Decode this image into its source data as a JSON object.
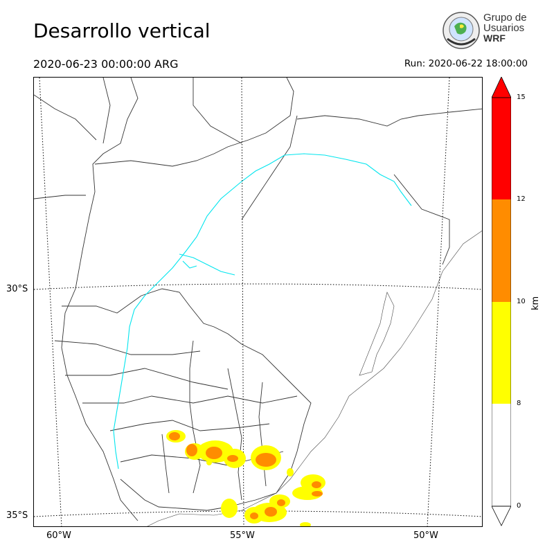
{
  "header": {
    "title": "Desarrollo vertical",
    "valid_time": "2020-06-23 00:00:00 ARG",
    "run_time": "Run: 2020-06-22 18:00:00"
  },
  "logo": {
    "line1": "Grupo de",
    "line2": "Usuarios",
    "line3": "WRF"
  },
  "map": {
    "lat_labels": [
      "30°S",
      "35°S"
    ],
    "lon_labels": [
      "60°W",
      "55°W",
      "50°W"
    ],
    "colors": {
      "borders": "#333333",
      "rivers": "#00e5ee",
      "gridlines": "#000000"
    }
  },
  "colorbar": {
    "unit": "km",
    "ticks": [
      "0",
      "8",
      "10",
      "12",
      "15"
    ],
    "bands": [
      {
        "from": 0,
        "to": 8,
        "color": "#ffffff"
      },
      {
        "from": 8,
        "to": 10,
        "color": "#ffff00"
      },
      {
        "from": 10,
        "to": 12,
        "color": "#ff8c00"
      },
      {
        "from": 12,
        "to": 15,
        "color": "#ff0000"
      }
    ],
    "extend_colors": {
      "over": "#ff0000",
      "under": "#ffffff"
    }
  }
}
